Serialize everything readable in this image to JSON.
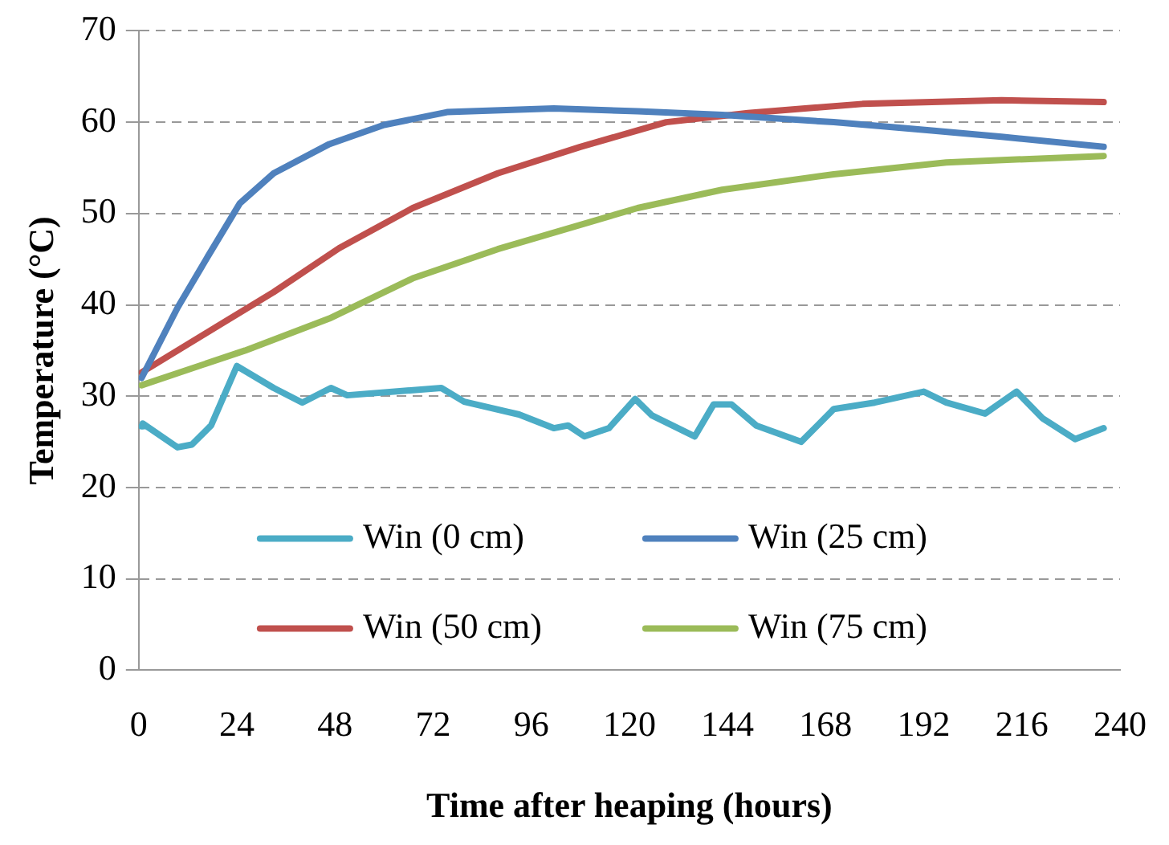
{
  "chart_data": {
    "type": "line",
    "xlabel": "Time after heaping (hours)",
    "ylabel": "Temperature (°C)",
    "xlim": [
      0,
      240
    ],
    "xticks": [
      0,
      24,
      48,
      72,
      96,
      120,
      144,
      168,
      192,
      216,
      240
    ],
    "ylim": [
      0,
      70
    ],
    "yticks": [
      0,
      10,
      20,
      30,
      40,
      50,
      60,
      70
    ],
    "grid": "y",
    "legend": "bottom",
    "marker": "none",
    "line_style": "solid",
    "series": [
      {
        "name": "Win (0 cm)",
        "color": "#4bacc6",
        "x": [
          0.7,
          1,
          9.5,
          13,
          17.7,
          24,
          33,
          40,
          47,
          51,
          74,
          79.6,
          93,
          101.5,
          105,
          109,
          115,
          121.4,
          125.5,
          136,
          140.6,
          145,
          151,
          162,
          170,
          180,
          192,
          197.5,
          207,
          214.7,
          221,
          229,
          236
        ],
        "values": [
          26.7,
          27,
          24.4,
          24.7,
          26.8,
          33.3,
          30.9,
          29.3,
          30.9,
          30.1,
          30.9,
          29.4,
          28,
          26.5,
          26.8,
          25.6,
          26.5,
          29.7,
          27.9,
          25.6,
          29.1,
          29.1,
          26.8,
          25,
          28.6,
          29.3,
          30.5,
          29.3,
          28.1,
          30.5,
          27.6,
          25.3,
          26.5
        ]
      },
      {
        "name": "Win (25 cm)",
        "color": "#4f81bd",
        "x": [
          0.7,
          9.5,
          16.5,
          24.7,
          33,
          46.6,
          60,
          75.4,
          101.5,
          122,
          142.7,
          170,
          193.4,
          211,
          236
        ],
        "values": [
          32,
          39.7,
          45,
          51.1,
          54.4,
          57.6,
          59.7,
          61.1,
          61.5,
          61.2,
          60.8,
          60,
          59.1,
          58.4,
          57.3
        ]
      },
      {
        "name": "Win (50 cm)",
        "color": "#c0504d",
        "x": [
          0.7,
          19,
          33,
          49,
          67,
          87.8,
          108,
          122,
          129,
          149,
          177,
          211,
          236
        ],
        "values": [
          32.6,
          37.6,
          41.4,
          46.2,
          50.6,
          54.4,
          57.3,
          59.1,
          60,
          61,
          62,
          62.4,
          62.2
        ]
      },
      {
        "name": "Win (75 cm)",
        "color": "#9bbb59",
        "x": [
          0.7,
          26,
          46.6,
          67,
          87.8,
          122,
          142.7,
          170,
          197.5,
          236
        ],
        "values": [
          31.2,
          35,
          38.5,
          42.9,
          46.1,
          50.6,
          52.6,
          54.3,
          55.6,
          56.3
        ]
      }
    ]
  }
}
